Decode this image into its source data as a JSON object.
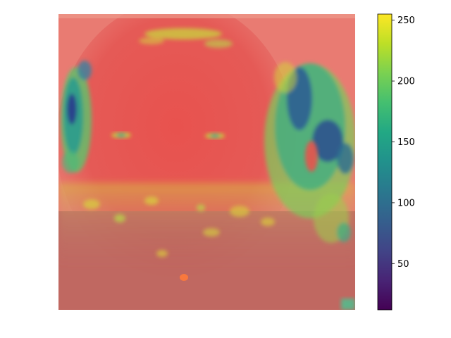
{
  "chart_data": {
    "type": "heatmap",
    "description_visible": "",
    "colormap": "viridis",
    "colorbar": {
      "vmin": 12,
      "vmax": 255,
      "ticks": [
        50,
        100,
        150,
        200,
        250
      ],
      "tick_labels": [
        "50",
        "100",
        "150",
        "200",
        "250"
      ],
      "orientation": "vertical",
      "placement": "right"
    },
    "axes": {
      "visible": false
    },
    "colors": {
      "overlay_red": "#e85a55",
      "viridis_low": "#440154",
      "viridis_mid": "#21918c",
      "viridis_high": "#fde725"
    }
  }
}
